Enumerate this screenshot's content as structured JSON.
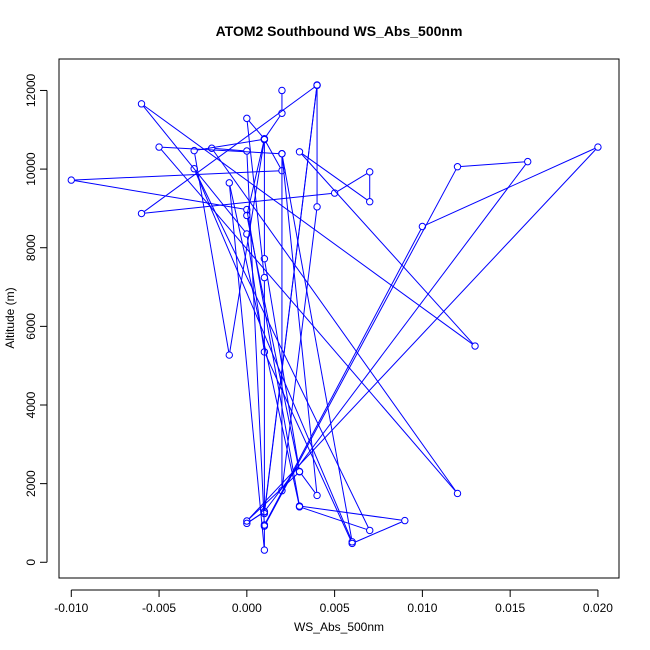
{
  "chart_data": {
    "type": "line",
    "title": "ATOM2 Southbound WS_Abs_500nm",
    "xlabel": "WS_Abs_500nm",
    "ylabel": "Altitude (m)",
    "xlim": [
      -0.0107,
      0.0212
    ],
    "ylim": [
      -400,
      12800
    ],
    "x_ticks": [
      "-0.010",
      "-0.005",
      "0.000",
      "0.005",
      "0.010",
      "0.015",
      "0.020"
    ],
    "y_ticks": [
      "0",
      "2000",
      "4000",
      "6000",
      "8000",
      "10000",
      "12000"
    ],
    "grid": false,
    "legend": "none",
    "colors": {
      "series": "#0000ff",
      "axis": "#000000",
      "background": "#ffffff"
    },
    "marker": "open-circle",
    "series": [
      {
        "x": [
          0.002,
          0.002,
          0.001,
          0.0,
          0.001,
          0.001,
          0.004,
          0.004,
          0.002,
          0.002,
          0.004,
          0.003,
          0.001,
          0.001,
          -0.001,
          -0.003,
          0.001,
          0.002,
          -0.01,
          0.0,
          0.003,
          0.009,
          0.006,
          0.001,
          0.0,
          -0.006,
          0.013,
          0.003,
          0.007,
          0.007,
          0.005,
          -0.006,
          0.004,
          0.001,
          0.0,
          0.001,
          0.016,
          0.012,
          0.001,
          0.0,
          -0.002,
          0.012,
          -0.005,
          0.002,
          0.006,
          -0.003,
          0.007,
          0.003,
          -0.001,
          0.001,
          0.001,
          0.01,
          0.02,
          0.0,
          0.003,
          0.0,
          0.001
        ],
        "y": [
          12000,
          11420,
          10770,
          11290,
          7240,
          1240,
          12140,
          9040,
          1820,
          10390,
          1700,
          2310,
          7720,
          10750,
          5270,
          10470,
          10760,
          9960,
          9720,
          8970,
          1430,
          1060,
          480,
          5350,
          8350,
          11660,
          5500,
          10440,
          9170,
          9930,
          9390,
          8870,
          12130,
          1280,
          990,
          1290,
          10190,
          10060,
          920,
          10460,
          10530,
          1750,
          10560,
          10390,
          520,
          10010,
          810,
          1410,
          9650,
          310,
          950,
          8540,
          10560,
          1050,
          2300,
          8820,
          10770
        ]
      }
    ]
  }
}
